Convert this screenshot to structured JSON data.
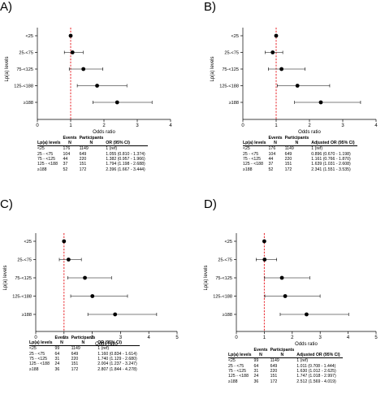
{
  "chart_data": [
    {
      "panel": "A)",
      "type": "scatter",
      "title": "",
      "xlabel": "Odds ratio",
      "ylabel": "Lp(a) levels",
      "xlim": [
        0,
        4
      ],
      "xticks": [
        "0",
        "1",
        "2",
        "3",
        "4"
      ],
      "reference_x": 1,
      "categories": [
        "<25",
        "25-<75",
        "75-<125",
        "125-<188",
        "≥188"
      ],
      "series": [
        {
          "values": [
            1.0,
            1.055,
            1.382,
            1.794,
            2.396
          ],
          "lower": [
            1.0,
            0.81,
            0.957,
            1.198,
            1.667
          ],
          "upper": [
            1.0,
            1.374,
            1.966,
            2.688,
            3.444
          ]
        }
      ],
      "table": {
        "headers": [
          {
            "main": "Lp(a) levels",
            "sub": ""
          },
          {
            "main": "Events",
            "sub": "N"
          },
          {
            "main": "Participants",
            "sub": "N"
          },
          {
            "main": "OR (95% CI)",
            "sub": ""
          }
        ],
        "rows": [
          [
            "<25",
            "176",
            "1149",
            "1 (ref)"
          ],
          [
            "25 - <75",
            "104",
            "649",
            "1.055 (0.810 - 1.374)"
          ],
          [
            "75 - <125",
            "44",
            "220",
            "1.382 (0.957 - 1.966)"
          ],
          [
            "125 - <188",
            "37",
            "151",
            "1.794 (1.198 - 2.688)"
          ],
          [
            "≥188",
            "52",
            "172",
            "2.396 (1.667 - 3.444)"
          ]
        ]
      }
    },
    {
      "panel": "B)",
      "type": "scatter",
      "title": "",
      "xlabel": "Odds ratio",
      "ylabel": "Lp(a) levels",
      "xlim": [
        0,
        4
      ],
      "xticks": [
        "0",
        "1",
        "2",
        "3",
        "4"
      ],
      "reference_x": 1,
      "categories": [
        "<25",
        "25-<75",
        "75-<125",
        "125-<188",
        "≥188"
      ],
      "series": [
        {
          "values": [
            1.0,
            0.896,
            1.161,
            1.639,
            2.341
          ],
          "lower": [
            1.0,
            0.67,
            0.766,
            1.031,
            1.551
          ],
          "upper": [
            1.0,
            1.198,
            1.87,
            2.608,
            3.535
          ]
        }
      ],
      "table": {
        "headers": [
          {
            "main": "Lp(a) levels",
            "sub": ""
          },
          {
            "main": "Events",
            "sub": "N"
          },
          {
            "main": "Participants",
            "sub": "N"
          },
          {
            "main": "Adjusted OR (95% CI)",
            "sub": ""
          }
        ],
        "rows": [
          [
            "<25",
            "176",
            "1149",
            "1 (ref)"
          ],
          [
            "25 - <75",
            "104",
            "649",
            "0.896 (0.670 - 1.198)"
          ],
          [
            "75 - <125",
            "44",
            "220",
            "1.161 (0.766 - 1.870)"
          ],
          [
            "125 - <188",
            "37",
            "151",
            "1.639 (1.031 - 2.608)"
          ],
          [
            "≥188",
            "52",
            "172",
            "2.341 (1.551 - 3.535)"
          ]
        ]
      }
    },
    {
      "panel": "C)",
      "type": "scatter",
      "title": "",
      "xlabel": "Odds ratio",
      "ylabel": "Lp(a) levels",
      "xlim": [
        0,
        5
      ],
      "xticks": [
        "0",
        "1",
        "2",
        "3",
        "4",
        "5"
      ],
      "reference_x": 1,
      "categories": [
        "<25",
        "25-<75",
        "75-<125",
        "125-<188",
        "≥188"
      ],
      "series": [
        {
          "values": [
            1.0,
            1.16,
            1.74,
            2.004,
            2.807
          ],
          "lower": [
            1.0,
            0.834,
            1.129,
            1.237,
            1.844
          ],
          "upper": [
            1.0,
            1.614,
            2.68,
            3.247,
            4.278
          ]
        }
      ],
      "table": {
        "headers": [
          {
            "main": "Lp(a) levels",
            "sub": ""
          },
          {
            "main": "Events",
            "sub": "N"
          },
          {
            "main": "Participants",
            "sub": "N"
          },
          {
            "main": "OR (95% CI)",
            "sub": ""
          }
        ],
        "rows": [
          [
            "<25",
            "99",
            "1149",
            "1 (ref)"
          ],
          [
            "25 - <75",
            "64",
            "649",
            "1.160 (0.834 - 1.614)"
          ],
          [
            "75 - <125",
            "31",
            "220",
            "1.740 (1.129 - 2.680)"
          ],
          [
            "125 - <188",
            "24",
            "151",
            "2.004 (1.237 - 3.247)"
          ],
          [
            "≥188",
            "36",
            "172",
            "2.807 (1.844 - 4.278)"
          ]
        ]
      }
    },
    {
      "panel": "D)",
      "type": "scatter",
      "title": "",
      "xlabel": "Odds ratio",
      "ylabel": "Lp(a) levels",
      "xlim": [
        0,
        5
      ],
      "xticks": [
        "0",
        "1",
        "2",
        "3",
        "4",
        "5"
      ],
      "reference_x": 1,
      "categories": [
        "<25",
        "25-<75",
        "75-<125",
        "125-<188",
        "≥188"
      ],
      "series": [
        {
          "values": [
            1.0,
            1.011,
            1.63,
            1.747,
            2.512
          ],
          "lower": [
            1.0,
            0.708,
            1.012,
            1.018,
            1.569
          ],
          "upper": [
            1.0,
            1.444,
            2.625,
            2.997,
            4.019
          ]
        }
      ],
      "table": {
        "headers": [
          {
            "main": "Lp(a) levels",
            "sub": ""
          },
          {
            "main": "Events",
            "sub": "N"
          },
          {
            "main": "Participants",
            "sub": "N"
          },
          {
            "main": "Adjusted OR (95% CI)",
            "sub": ""
          }
        ],
        "rows": [
          [
            "<25",
            "99",
            "1149",
            "1 (ref)"
          ],
          [
            "25 - <75",
            "64",
            "649",
            "1.011 (0.708 - 1.444)"
          ],
          [
            "75 - <125",
            "31",
            "220",
            "1.630 (1.012 - 2.625)"
          ],
          [
            "125 - <188",
            "24",
            "151",
            "1.747 (1.018 - 2.997)"
          ],
          [
            "≥188",
            "36",
            "172",
            "2.512 (1.569 - 4.019)"
          ]
        ]
      }
    }
  ],
  "style": {
    "reference_line_color": "#e8252b",
    "marker_color": "#000000",
    "axis_color": "#000000"
  }
}
